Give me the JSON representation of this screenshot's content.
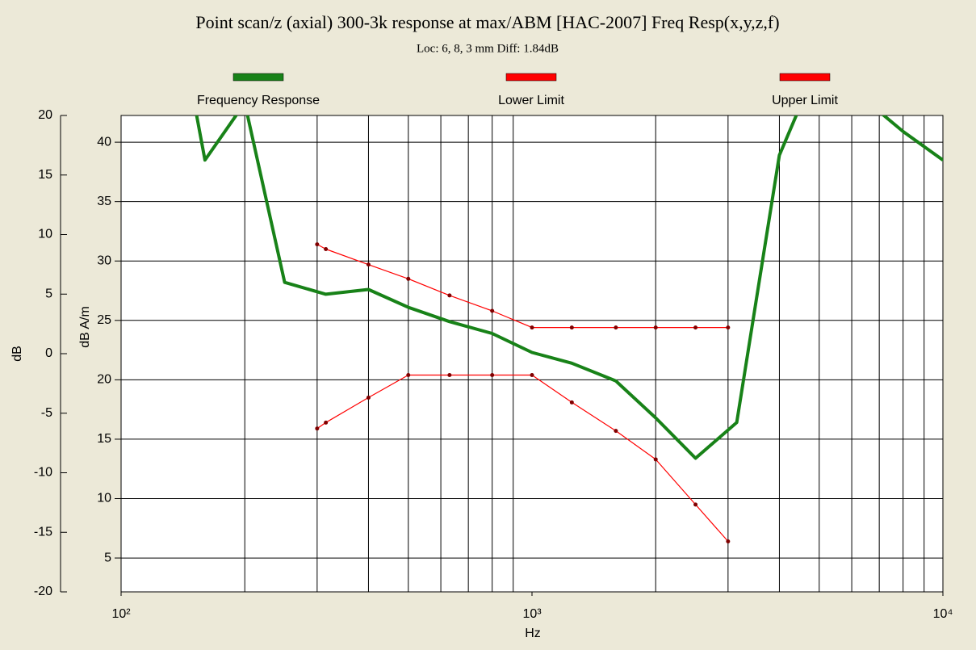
{
  "chart_data": {
    "type": "line",
    "title": "Point scan/z (axial) 300-3k response at max/ABM [HAC-2007] Freq Resp(x,y,z,f)",
    "subtitle": "Loc: 6, 8, 3 mm Diff: 1.84dB",
    "xlabel": "Hz",
    "ylabel": "dB",
    "y2label": "dB A/m",
    "log_x": true,
    "grid": true,
    "legend": "top",
    "xlim": [
      100,
      10000
    ],
    "xticks": [
      {
        "value": 100,
        "label": "10²"
      },
      {
        "value": 1000,
        "label": "10³"
      },
      {
        "value": 10000,
        "label": "10⁴"
      }
    ],
    "ylim": [
      -20,
      20
    ],
    "yticks": [
      -20,
      -15,
      -10,
      -5,
      0,
      5,
      10,
      15,
      20
    ],
    "y2lim": [
      2.15,
      42.25
    ],
    "y2ticks": [
      5,
      10,
      15,
      20,
      25,
      30,
      35,
      40
    ],
    "series": [
      {
        "name": "Frequency Response",
        "color": "#188218",
        "axis": "y2",
        "x": [
          150,
          160,
          200,
          250,
          315,
          400,
          500,
          630,
          800,
          1000,
          1250,
          1600,
          2000,
          2500,
          3150,
          4000,
          5000,
          8000,
          10000
        ],
        "values": [
          43.7,
          38.5,
          43.3,
          28.2,
          27.2,
          27.6,
          26.1,
          24.9,
          23.9,
          22.3,
          21.4,
          19.9,
          16.8,
          13.4,
          16.4,
          38.9,
          46.8,
          40.9,
          38.5
        ]
      },
      {
        "name": "Lower Limit",
        "color": "#ff0000",
        "axis": "y2",
        "x": [
          300,
          315,
          400,
          500,
          630,
          800,
          1000,
          1250,
          1600,
          2000,
          2500,
          3000
        ],
        "values": [
          15.9,
          16.4,
          18.5,
          20.4,
          20.4,
          20.4,
          20.4,
          18.1,
          15.7,
          13.3,
          9.5,
          6.4
        ]
      },
      {
        "name": "Upper Limit",
        "color": "#ff0000",
        "axis": "y2",
        "x": [
          300,
          315,
          400,
          500,
          630,
          800,
          1000,
          1250,
          1600,
          2000,
          2500,
          3000
        ],
        "values": [
          31.4,
          31.0,
          29.7,
          28.5,
          27.1,
          25.8,
          24.4,
          24.4,
          24.4,
          24.4,
          24.4,
          24.4
        ]
      }
    ]
  }
}
